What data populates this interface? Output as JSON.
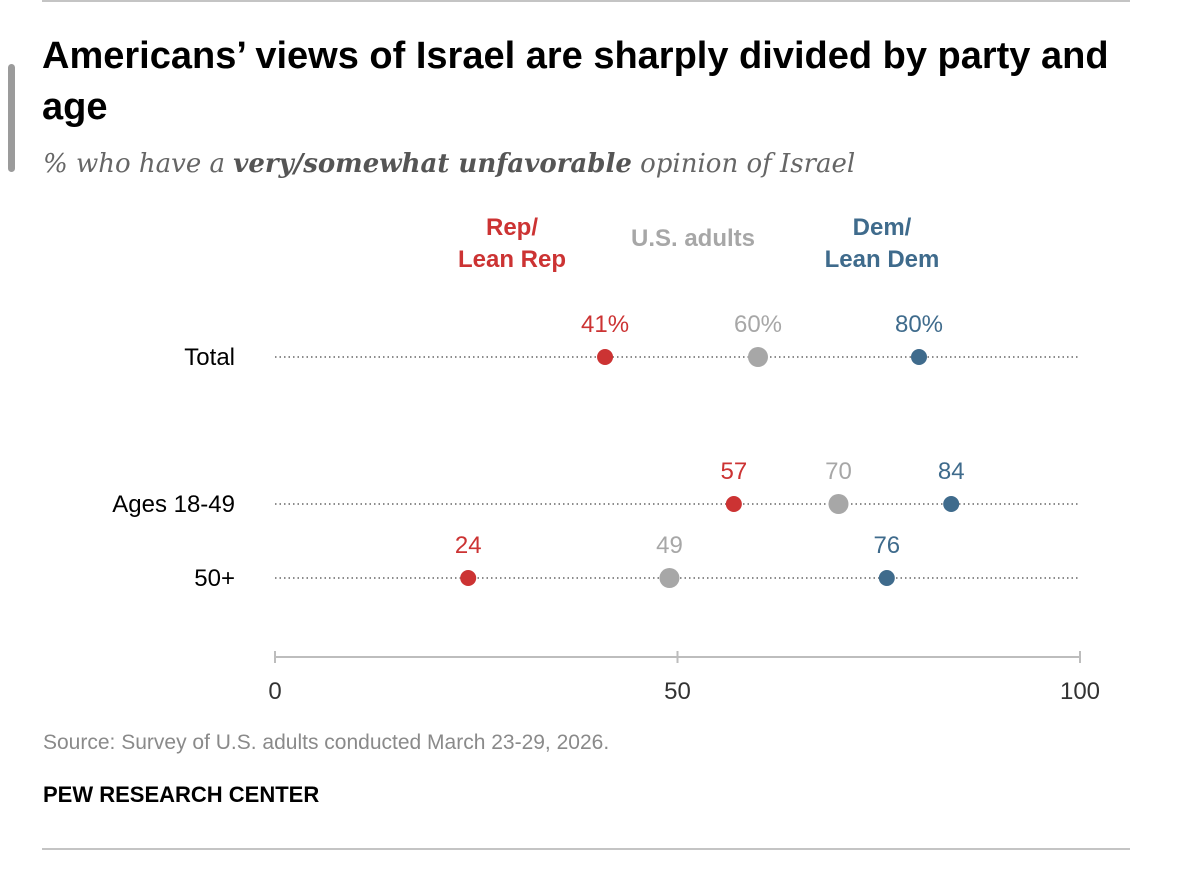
{
  "chart_data": {
    "type": "dot",
    "title": "Americans’ views of Israel are sharply divided by party and age",
    "subtitle": {
      "prefix": "% who have a ",
      "emphasis": "very/somewhat unfavorable",
      "suffix": " opinion of Israel"
    },
    "categories": [
      "Total",
      "Ages 18-49",
      "50+"
    ],
    "series": [
      {
        "name": "Rep/\nLean Rep",
        "color": "#cc3333",
        "values": [
          41,
          57,
          24
        ],
        "labels": [
          "41%",
          "57",
          "24"
        ]
      },
      {
        "name": "U.S. adults",
        "color": "#a7a7a7",
        "values": [
          60,
          70,
          49
        ],
        "labels": [
          "60%",
          "70",
          "49"
        ]
      },
      {
        "name": "Dem/\nLean Dem",
        "color": "#3f6b8c",
        "values": [
          80,
          84,
          76
        ],
        "labels": [
          "80%",
          "84",
          "76"
        ]
      }
    ],
    "xlim": [
      0,
      100
    ],
    "xticks": [
      "0",
      "50",
      "100"
    ],
    "legend_position": "top",
    "grid": false,
    "source": "Source: Survey of U.S. adults conducted March 23-29, 2026.",
    "brand": "PEW RESEARCH CENTER"
  }
}
